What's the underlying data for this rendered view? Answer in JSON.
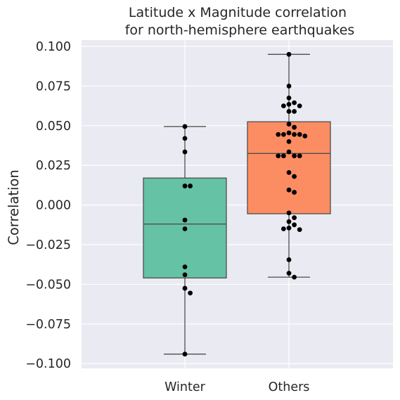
{
  "chart_data": {
    "type": "box",
    "title": [
      "Latitude x Magnitude correlation",
      "for north-hemisphere earthquakes"
    ],
    "xlabel": "",
    "ylabel": "Correlation",
    "ylim": [
      -0.103,
      0.104
    ],
    "yticks": [
      -0.1,
      -0.075,
      -0.05,
      -0.025,
      0.0,
      0.025,
      0.05,
      0.075,
      0.1
    ],
    "ytick_labels": [
      "−0.100",
      "−0.075",
      "−0.050",
      "−0.025",
      "0.000",
      "0.025",
      "0.050",
      "0.075",
      "0.100"
    ],
    "grid": true,
    "background": "#eaeaf2",
    "categories": [
      "Winter",
      "Others"
    ],
    "boxes": [
      {
        "category": "Winter",
        "color": "#66c2a5",
        "whisker_low": -0.094,
        "q1": -0.046,
        "median": -0.012,
        "q3": 0.017,
        "whisker_high": 0.0495
      },
      {
        "category": "Others",
        "color": "#fc8d62",
        "whisker_low": -0.0455,
        "q1": -0.0055,
        "median": 0.0325,
        "q3": 0.0525,
        "whisker_high": 0.095
      }
    ],
    "points": [
      [
        0.0495,
        0.042,
        0.0335,
        0.012,
        0.012,
        -0.0095,
        -0.015,
        -0.039,
        -0.044,
        -0.0525,
        -0.0555,
        -0.094
      ],
      [
        0.095,
        0.075,
        0.0675,
        0.0625,
        0.0645,
        0.0635,
        0.0625,
        0.059,
        0.059,
        0.051,
        0.049,
        0.0445,
        0.0435,
        0.0445,
        0.0445,
        0.0455,
        0.0445,
        0.04,
        0.0335,
        0.031,
        0.031,
        0.031,
        0.031,
        0.0205,
        0.018,
        0.0095,
        0.008,
        -0.005,
        -0.008,
        -0.0105,
        -0.0125,
        -0.015,
        -0.0155,
        -0.0145,
        -0.0345,
        -0.043,
        -0.0455
      ]
    ]
  }
}
